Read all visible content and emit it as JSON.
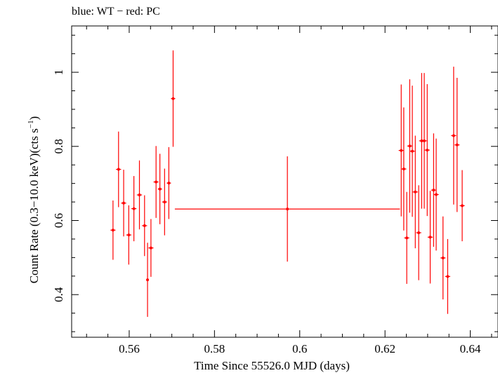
{
  "chart_data": {
    "type": "scatter",
    "title": "blue: WT − red: PC",
    "xlabel": "Time Since 55526.0 MJD (days)",
    "ylabel_main": "Count Rate (0.3−10.0 keV)(cts s",
    "ylabel_sup": "−1",
    "ylabel_close": ")",
    "xlim": [
      0.5465,
      0.6465
    ],
    "ylim": [
      0.285,
      1.125
    ],
    "x_ticks": [
      0.56,
      0.58,
      0.6,
      0.62,
      0.64
    ],
    "x_tick_labels": [
      "0.56",
      "0.58",
      "0.6",
      "0.62",
      "0.64"
    ],
    "x_minor_step": 0.005,
    "y_ticks": [
      0.4,
      0.6,
      0.8,
      1.0
    ],
    "y_tick_labels": [
      "0.4",
      "0.6",
      "0.8",
      "1"
    ],
    "y_minor_step": 0.05,
    "series": [
      {
        "name": "PC",
        "color": "#ff0000",
        "points": [
          {
            "x": 0.5562,
            "xerr": 0.0006,
            "y": 0.574,
            "yerr": 0.08
          },
          {
            "x": 0.5575,
            "xerr": 0.0006,
            "y": 0.738,
            "yerr": 0.102
          },
          {
            "x": 0.5587,
            "xerr": 0.0006,
            "y": 0.647,
            "yerr": 0.09
          },
          {
            "x": 0.5599,
            "xerr": 0.0006,
            "y": 0.561,
            "yerr": 0.08
          },
          {
            "x": 0.5611,
            "xerr": 0.0006,
            "y": 0.632,
            "yerr": 0.088
          },
          {
            "x": 0.5624,
            "xerr": 0.0006,
            "y": 0.669,
            "yerr": 0.093
          },
          {
            "x": 0.5636,
            "xerr": 0.0006,
            "y": 0.586,
            "yerr": 0.082
          },
          {
            "x": 0.5643,
            "xerr": 0.0003,
            "y": 0.44,
            "yerr": 0.1
          },
          {
            "x": 0.5651,
            "xerr": 0.0006,
            "y": 0.526,
            "yerr": 0.078
          },
          {
            "x": 0.5663,
            "xerr": 0.0006,
            "y": 0.704,
            "yerr": 0.097
          },
          {
            "x": 0.5672,
            "xerr": 0.0005,
            "y": 0.685,
            "yerr": 0.095
          },
          {
            "x": 0.5683,
            "xerr": 0.0006,
            "y": 0.65,
            "yerr": 0.09
          },
          {
            "x": 0.5693,
            "xerr": 0.0005,
            "y": 0.701,
            "yerr": 0.097
          },
          {
            "x": 0.5703,
            "xerr": 0.0005,
            "y": 0.929,
            "yerr": 0.13
          },
          {
            "x": 0.5971,
            "xerr": 0.0264,
            "y": 0.631,
            "yerr": 0.142
          },
          {
            "x": 0.6238,
            "xerr": 0.0006,
            "y": 0.789,
            "yerr": 0.178
          },
          {
            "x": 0.6244,
            "xerr": 0.0006,
            "y": 0.739,
            "yerr": 0.166
          },
          {
            "x": 0.6251,
            "xerr": 0.0006,
            "y": 0.553,
            "yerr": 0.124
          },
          {
            "x": 0.6258,
            "xerr": 0.0006,
            "y": 0.801,
            "yerr": 0.18
          },
          {
            "x": 0.6264,
            "xerr": 0.0006,
            "y": 0.787,
            "yerr": 0.177
          },
          {
            "x": 0.6271,
            "xerr": 0.0006,
            "y": 0.677,
            "yerr": 0.152
          },
          {
            "x": 0.6279,
            "xerr": 0.0006,
            "y": 0.567,
            "yerr": 0.128
          },
          {
            "x": 0.6286,
            "xerr": 0.0006,
            "y": 0.815,
            "yerr": 0.183
          },
          {
            "x": 0.6292,
            "xerr": 0.0006,
            "y": 0.815,
            "yerr": 0.183
          },
          {
            "x": 0.6299,
            "xerr": 0.0006,
            "y": 0.79,
            "yerr": 0.178
          },
          {
            "x": 0.6306,
            "xerr": 0.0006,
            "y": 0.555,
            "yerr": 0.125
          },
          {
            "x": 0.6314,
            "xerr": 0.0006,
            "y": 0.682,
            "yerr": 0.153
          },
          {
            "x": 0.632,
            "xerr": 0.0006,
            "y": 0.67,
            "yerr": 0.151
          },
          {
            "x": 0.6336,
            "xerr": 0.0006,
            "y": 0.499,
            "yerr": 0.112
          },
          {
            "x": 0.6347,
            "xerr": 0.0006,
            "y": 0.449,
            "yerr": 0.101
          },
          {
            "x": 0.6361,
            "xerr": 0.0006,
            "y": 0.829,
            "yerr": 0.186
          },
          {
            "x": 0.6369,
            "xerr": 0.0006,
            "y": 0.804,
            "yerr": 0.181
          },
          {
            "x": 0.6381,
            "xerr": 0.0006,
            "y": 0.64,
            "yerr": 0.096
          }
        ]
      }
    ]
  }
}
